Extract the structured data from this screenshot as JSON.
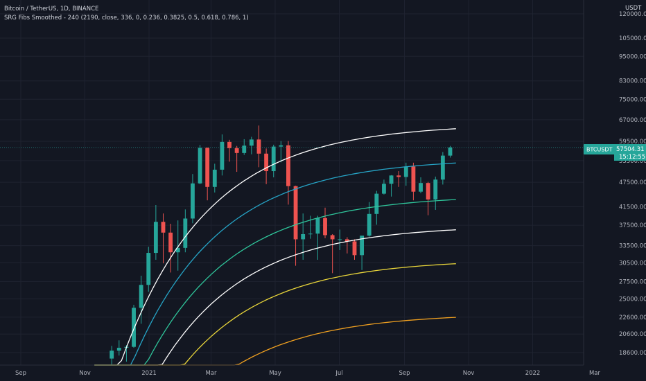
{
  "header": {
    "symbol_line": "Bitcoin / TetherUS, 1D, BINANCE",
    "indicator_line": "SRG Fibs Smoothed - 240 (2190, close, 336, 0, 0.236, 0.3825, 0.5, 0.618, 0.786, 1)"
  },
  "price_axis": {
    "currency": "USDT",
    "ticks": [
      "120000.00",
      "105000.00",
      "95000.00",
      "83000.00",
      "75000.00",
      "67000.00",
      "59500.00",
      "53500.00",
      "47500.00",
      "41500.00",
      "37500.00",
      "33500.00",
      "30500.00",
      "27500.00",
      "25000.00",
      "22600.00",
      "20600.00",
      "18600.00"
    ]
  },
  "time_axis": {
    "ticks": [
      "Sep",
      "Nov",
      "2021",
      "Mar",
      "May",
      "Jul",
      "Sep",
      "Nov",
      "2022",
      "Mar"
    ]
  },
  "last_price": {
    "symbol": "BTCUSDT",
    "price": "57504.31",
    "countdown": "15:12:55"
  },
  "colors": {
    "background": "#131722",
    "grid": "#1f2330",
    "up": "#26a69a",
    "down": "#ef5350",
    "badge": "#26a69a"
  },
  "chart_data": {
    "type": "line",
    "title": "Bitcoin / TetherUS, 1D, BINANCE",
    "scale": "log",
    "ylim": [
      17500,
      125000
    ],
    "grid": true,
    "candles_ohlc_weekly_approx": [
      {
        "t": "2020-11-23",
        "o": 18000,
        "h": 19300,
        "l": 17200,
        "c": 18800
      },
      {
        "t": "2020-11-30",
        "o": 18800,
        "h": 19900,
        "l": 18300,
        "c": 19100
      },
      {
        "t": "2020-12-07",
        "o": 19100,
        "h": 19400,
        "l": 17700,
        "c": 19200
      },
      {
        "t": "2020-12-14",
        "o": 19200,
        "h": 24200,
        "l": 19100,
        "c": 23800
      },
      {
        "t": "2020-12-21",
        "o": 23800,
        "h": 28400,
        "l": 21800,
        "c": 27000
      },
      {
        "t": "2020-12-28",
        "o": 27000,
        "h": 33300,
        "l": 26000,
        "c": 32200
      },
      {
        "t": "2021-01-04",
        "o": 32200,
        "h": 41900,
        "l": 31000,
        "c": 38200
      },
      {
        "t": "2021-01-11",
        "o": 38200,
        "h": 40000,
        "l": 30400,
        "c": 36000
      },
      {
        "t": "2021-01-18",
        "o": 36000,
        "h": 37800,
        "l": 28900,
        "c": 32300
      },
      {
        "t": "2021-01-25",
        "o": 32300,
        "h": 38500,
        "l": 29200,
        "c": 33100
      },
      {
        "t": "2021-02-01",
        "o": 33100,
        "h": 40900,
        "l": 32300,
        "c": 38900
      },
      {
        "t": "2021-02-08",
        "o": 38900,
        "h": 49700,
        "l": 37900,
        "c": 47200
      },
      {
        "t": "2021-02-15",
        "o": 47200,
        "h": 58300,
        "l": 47000,
        "c": 57400
      },
      {
        "t": "2021-02-22",
        "o": 57400,
        "h": 57500,
        "l": 43000,
        "c": 46300
      },
      {
        "t": "2021-03-01",
        "o": 46300,
        "h": 52600,
        "l": 44900,
        "c": 50900
      },
      {
        "t": "2021-03-08",
        "o": 50900,
        "h": 61800,
        "l": 49300,
        "c": 59300
      },
      {
        "t": "2021-03-15",
        "o": 59300,
        "h": 60000,
        "l": 53200,
        "c": 57300
      },
      {
        "t": "2021-03-22",
        "o": 57300,
        "h": 58000,
        "l": 50300,
        "c": 55800
      },
      {
        "t": "2021-03-29",
        "o": 55800,
        "h": 60200,
        "l": 55200,
        "c": 58100
      },
      {
        "t": "2021-04-05",
        "o": 58100,
        "h": 61000,
        "l": 55400,
        "c": 60100
      },
      {
        "t": "2021-04-12",
        "o": 60100,
        "h": 64900,
        "l": 51600,
        "c": 55600
      },
      {
        "t": "2021-04-19",
        "o": 55600,
        "h": 57200,
        "l": 47000,
        "c": 50500
      },
      {
        "t": "2021-04-26",
        "o": 50500,
        "h": 58400,
        "l": 48800,
        "c": 57800
      },
      {
        "t": "2021-05-03",
        "o": 57800,
        "h": 59600,
        "l": 53000,
        "c": 58200
      },
      {
        "t": "2021-05-10",
        "o": 58200,
        "h": 59600,
        "l": 42000,
        "c": 46500
      },
      {
        "t": "2021-05-17",
        "o": 46500,
        "h": 46600,
        "l": 30000,
        "c": 34700
      },
      {
        "t": "2021-05-24",
        "o": 34700,
        "h": 40000,
        "l": 31000,
        "c": 35700
      },
      {
        "t": "2021-05-31",
        "o": 35700,
        "h": 39500,
        "l": 34800,
        "c": 35800
      },
      {
        "t": "2021-06-07",
        "o": 35800,
        "h": 39500,
        "l": 31000,
        "c": 39000
      },
      {
        "t": "2021-06-14",
        "o": 39000,
        "h": 41300,
        "l": 34900,
        "c": 35500
      },
      {
        "t": "2021-06-21",
        "o": 35500,
        "h": 35700,
        "l": 28800,
        "c": 34700
      },
      {
        "t": "2021-06-28",
        "o": 34700,
        "h": 36600,
        "l": 32700,
        "c": 34700
      },
      {
        "t": "2021-07-05",
        "o": 34700,
        "h": 35100,
        "l": 32100,
        "c": 34300
      },
      {
        "t": "2021-07-12",
        "o": 34300,
        "h": 34700,
        "l": 31000,
        "c": 31800
      },
      {
        "t": "2021-07-19",
        "o": 31800,
        "h": 35400,
        "l": 29300,
        "c": 35400
      },
      {
        "t": "2021-07-26",
        "o": 35400,
        "h": 42600,
        "l": 35200,
        "c": 39900
      },
      {
        "t": "2021-08-02",
        "o": 39900,
        "h": 45300,
        "l": 37600,
        "c": 44600
      },
      {
        "t": "2021-08-09",
        "o": 44600,
        "h": 48200,
        "l": 44400,
        "c": 47100
      },
      {
        "t": "2021-08-16",
        "o": 47100,
        "h": 49400,
        "l": 43900,
        "c": 49300
      },
      {
        "t": "2021-08-23",
        "o": 49300,
        "h": 50500,
        "l": 46300,
        "c": 48900
      },
      {
        "t": "2021-08-30",
        "o": 48900,
        "h": 52900,
        "l": 46600,
        "c": 51800
      },
      {
        "t": "2021-09-06",
        "o": 51800,
        "h": 52900,
        "l": 43000,
        "c": 45100
      },
      {
        "t": "2021-09-13",
        "o": 45100,
        "h": 48800,
        "l": 44700,
        "c": 47300
      },
      {
        "t": "2021-09-20",
        "o": 47300,
        "h": 47600,
        "l": 39600,
        "c": 43200
      },
      {
        "t": "2021-09-27",
        "o": 43200,
        "h": 49000,
        "l": 40800,
        "c": 48200
      },
      {
        "t": "2021-10-04",
        "o": 48200,
        "h": 56100,
        "l": 46900,
        "c": 55000
      },
      {
        "t": "2021-10-11",
        "o": 55000,
        "h": 58000,
        "l": 54400,
        "c": 57504
      }
    ],
    "fib_levels": [
      {
        "level": "1",
        "color": "#ffffff",
        "end_value": 65500
      },
      {
        "level": "0.786",
        "color": "#26a4c6",
        "end_value": 54200
      },
      {
        "level": "0.618",
        "color": "#2fc69b",
        "end_value": 44300
      },
      {
        "level": "0.5",
        "color": "#ffffff",
        "end_value": 37500
      },
      {
        "level": "0.3825",
        "color": "#e8d53a",
        "end_value": 31100
      },
      {
        "level": "0.236",
        "color": "#f0a020",
        "end_value": 23100
      }
    ],
    "last_value": 57504.31
  }
}
